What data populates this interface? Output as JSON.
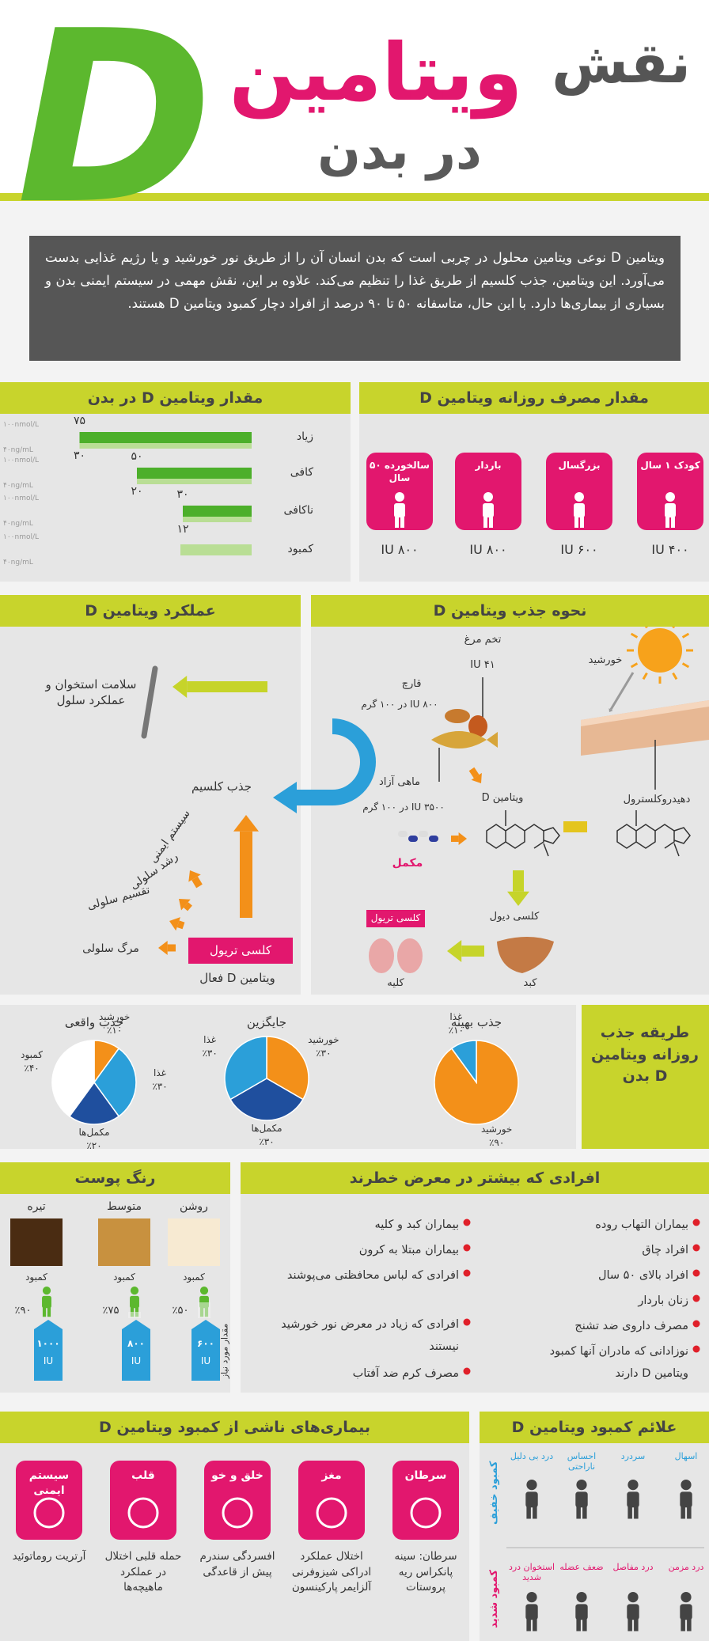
{
  "header": {
    "title_1": "نقش",
    "title_2": "ویتامین",
    "title_3": "در بدن",
    "letter": "D"
  },
  "intro": "ویتامین D نوعی ویتامین محلول در چربی است که بدن انسان آن را از طریق نور خورشید و یا رژیم غذایی بدست می‌آورد. این ویتامین، جذب کلسیم از طریق غذا را تنظیم می‌کند. علاوه بر این، نقش مهمی در سیستم ایمنی بدن و بسیاری از بیماری‌ها دارد. با این حال، متاسفانه ۵۰ تا ۹۰ درصد از افراد دچار کمبود ویتامین D هستند.",
  "levels": {
    "title": "مقدار ویتامین D در بدن",
    "unit_nmol": "۱۰۰nmol/L",
    "unit_ng": "۴۰ng/mL",
    "rows": [
      {
        "label": "زیاد",
        "nmol": 75,
        "nmol_label": "۷۵",
        "ng": 30,
        "ng_label": "۳۰"
      },
      {
        "label": "کافی",
        "nmol": 50,
        "nmol_label": "۵۰",
        "ng": 20,
        "ng_label": "۲۰"
      },
      {
        "label": "ناکافی",
        "nmol": 30,
        "nmol_label": "۳۰",
        "ng": 12,
        "ng_label": "۱۲"
      },
      {
        "label": "کمبود"
      }
    ]
  },
  "intake": {
    "title": "مقدار مصرف روزانه ویتامین D",
    "items": [
      {
        "label": "کودک ۱ سال",
        "amount": "IU ۴۰۰"
      },
      {
        "label": "بزرگسال",
        "amount": "IU ۶۰۰"
      },
      {
        "label": "باردار",
        "amount": "IU ۸۰۰"
      },
      {
        "label": "سالخورده ۵۰ سال",
        "amount": "IU ۸۰۰"
      }
    ]
  },
  "function": {
    "title": "عملکرد ویتامین D",
    "bone": "سلامت استخوان و عملکرد سلول",
    "calcium": "جذب کلسیم",
    "immune": "سیستم ایمنی",
    "growth": "رشد سلولی",
    "division": "تقسیم سلولی",
    "death": "مرگ سلولی",
    "calcitriol": "کلسی تریول",
    "active": "ویتامین D فعال"
  },
  "absorption": {
    "title": "نحوه جذب ویتامین D",
    "sun": "خورشید",
    "egg": "تخم مرغ",
    "egg_amount": "IU ۴۱",
    "mushroom": "قارچ",
    "mushroom_amount": "IU ۸۰۰ در ۱۰۰ گرم",
    "salmon": "ماهی آزاد",
    "salmon_amount": "IU ۳۵۰۰ در ۱۰۰ گرم",
    "supplement": "مکمل",
    "vitamin": "ویتامین D",
    "dehydro": "دهیدروکلسترول",
    "calcidiol": "کلسی دیول",
    "liver": "کبد",
    "calcitriol": "کلسی تریول",
    "kidney": "کلیه"
  },
  "pies": {
    "title": "طریقه جذب روزانه ویتامین D بدن",
    "charts": [
      {
        "title": "جذب بهینه",
        "type": "pie",
        "slices": [
          {
            "name": "خورشید",
            "value": 90,
            "value_label": "٪۹۰",
            "color": "#f39019"
          },
          {
            "name": "غذا",
            "value": 10,
            "value_label": "٪۱۰",
            "color": "#2b9fd9"
          }
        ]
      },
      {
        "title": "جایگزین",
        "type": "pie",
        "slices": [
          {
            "name": "خورشید",
            "value": 30,
            "value_label": "٪۳۰",
            "color": "#f39019"
          },
          {
            "name": "مکمل‌ها",
            "value": 30,
            "value_label": "٪۳۰",
            "color": "#1f4f9e"
          },
          {
            "name": "غذا",
            "value": 30,
            "value_label": "٪۳۰",
            "color": "#2b9fd9"
          }
        ]
      },
      {
        "title": "جذب واقعی",
        "type": "pie",
        "slices": [
          {
            "name": "خورشید",
            "value": 10,
            "value_label": "٪۱۰",
            "color": "#f39019"
          },
          {
            "name": "غذا",
            "value": 30,
            "value_label": "٪۳۰",
            "color": "#2b9fd9"
          },
          {
            "name": "مکمل‌ها",
            "value": 20,
            "value_label": "٪۲۰",
            "color": "#1f4f9e"
          },
          {
            "name": "کمبود",
            "value": 40,
            "value_label": "٪۴۰",
            "color": "#ffffff"
          }
        ]
      }
    ]
  },
  "skin": {
    "title": "رنگ پوست",
    "side_label": "مقدار مورد نیاز",
    "tones": [
      {
        "name": "روشن",
        "deficiency": "کمبود",
        "percent": "٪۵۰",
        "iu_value": "۶۰۰",
        "iu_unit": "IU"
      },
      {
        "name": "متوسط",
        "deficiency": "کمبود",
        "percent": "٪۷۵",
        "iu_value": "۸۰۰",
        "iu_unit": "IU"
      },
      {
        "name": "تیره",
        "deficiency": "کمبود",
        "percent": "٪۹۰",
        "iu_value": "۱۰۰۰",
        "iu_unit": "IU"
      }
    ]
  },
  "risk": {
    "title": "افرادی که بیشتر در معرض خطرند",
    "column_1": [
      "بیماران التهاب روده",
      "افراد چاق",
      "افراد بالای ۵۰ سال",
      "زنان باردار",
      "مصرف داروی ضد تشنج",
      "نوزادانی که مادران آنها کمبود ویتامین D دارند"
    ],
    "column_2": [
      "بیماران کبد و کلیه",
      "بیماران مبتلا به کرون",
      "افرادی که لباس محافظتی می‌پوشند",
      "افرادی که زیاد در معرض نور خورشید نیستند",
      "مصرف کرم ضد آفتاب"
    ]
  },
  "diseases": {
    "title": "بیماری‌های ناشی از کمبود ویتامین D",
    "items": [
      {
        "name": "سرطان",
        "details": "سرطان: سینه پانکراس ریه پروستات"
      },
      {
        "name": "مغز",
        "details": "اختلال عملکرد ادراکی شیزوفرنی آلزایمر پارکینسون"
      },
      {
        "name": "خلق و خو",
        "details": "افسردگی سندرم پیش از قاعدگی"
      },
      {
        "name": "قلب",
        "details": "حمله قلبی اختلال در عملکرد ماهیچه‌ها"
      },
      {
        "name": "سیستم ایمنی",
        "details": "آرتریت روماتوئید"
      }
    ]
  },
  "symptoms": {
    "title": "علائم کمبود ویتامین D",
    "mild_label": "کمبود خفیف",
    "severe_label": "کمبود شدید",
    "mild": [
      "اسهال",
      "سردرد",
      "احساس ناراحتی",
      "درد بی دلیل"
    ],
    "severe": [
      "درد مزمن",
      "درد مفاصل",
      "ضعف عضله",
      "استخوان درد شدید"
    ]
  }
}
